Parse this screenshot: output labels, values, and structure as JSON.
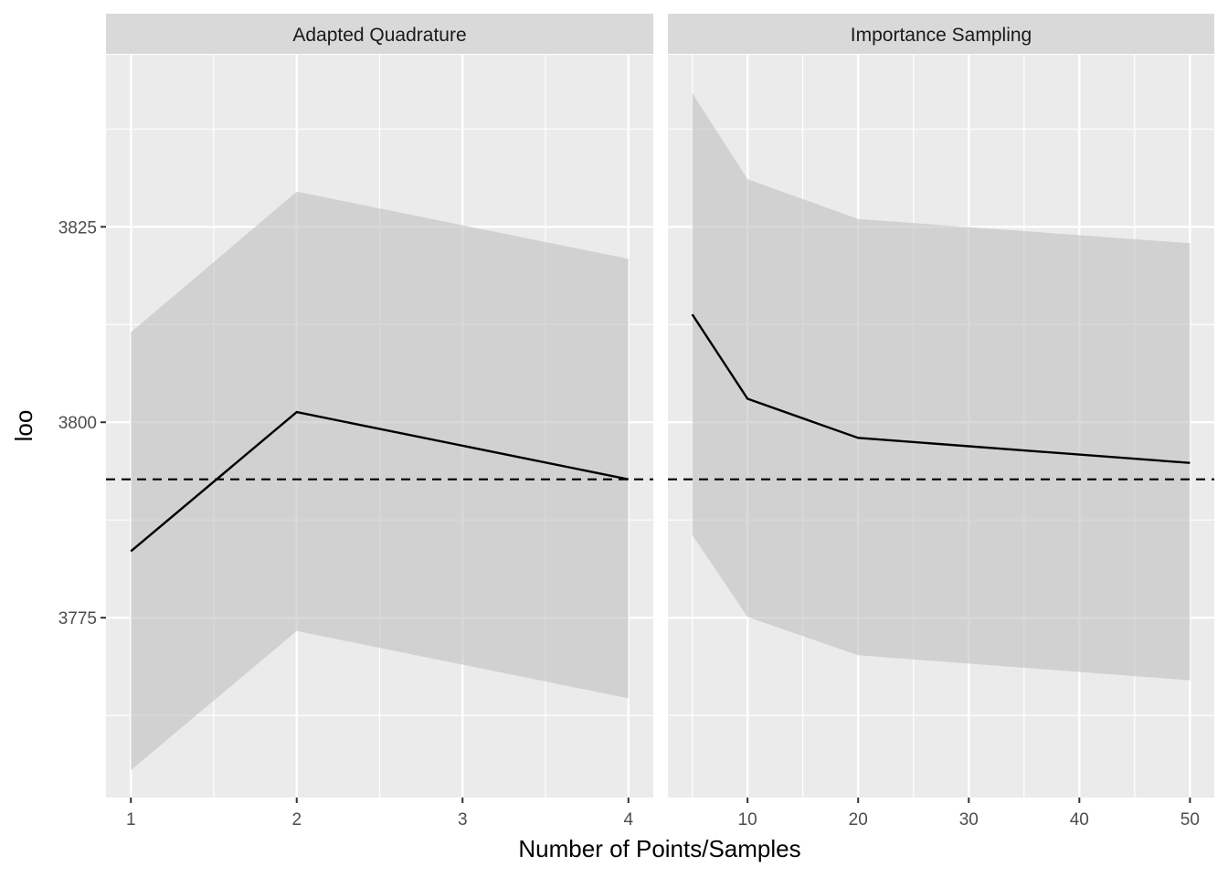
{
  "chart_data": {
    "type": "line",
    "xlabel": "Number of Points/Samples",
    "ylabel": "loo",
    "reference_line": {
      "y": 3792.7,
      "style": "dashed",
      "color": "#000000"
    },
    "y_ticks": [
      3775,
      3800,
      3825
    ],
    "ylim": [
      3752,
      3847
    ],
    "colors": {
      "panel_bg": "#ebebeb",
      "strip_bg": "#d9d9d9",
      "ribbon": "#bfbfbf",
      "line": "#000000",
      "grid": "#ffffff"
    },
    "grid": true,
    "panels": [
      {
        "title": "Adapted Quadrature",
        "x_ticks": [
          1,
          2,
          3,
          4
        ],
        "xlim": [
          0.85,
          4.15
        ],
        "x": [
          1,
          2,
          4
        ],
        "y": [
          3783.5,
          3801.3,
          3792.7
        ],
        "ymin": [
          3755.5,
          3773.3,
          3764.7
        ],
        "ymax": [
          3811.5,
          3829.5,
          3820.9
        ]
      },
      {
        "title": "Importance Sampling",
        "x_ticks": [
          10,
          20,
          30,
          40,
          50
        ],
        "xlim": [
          2.8,
          52.2
        ],
        "x": [
          5,
          10,
          20,
          50
        ],
        "y": [
          3813.8,
          3803.0,
          3798.0,
          3794.8
        ],
        "ymin": [
          3785.6,
          3775.1,
          3770.2,
          3767.0
        ],
        "ymax": [
          3842.1,
          3831.1,
          3826.0,
          3822.9
        ]
      }
    ]
  }
}
